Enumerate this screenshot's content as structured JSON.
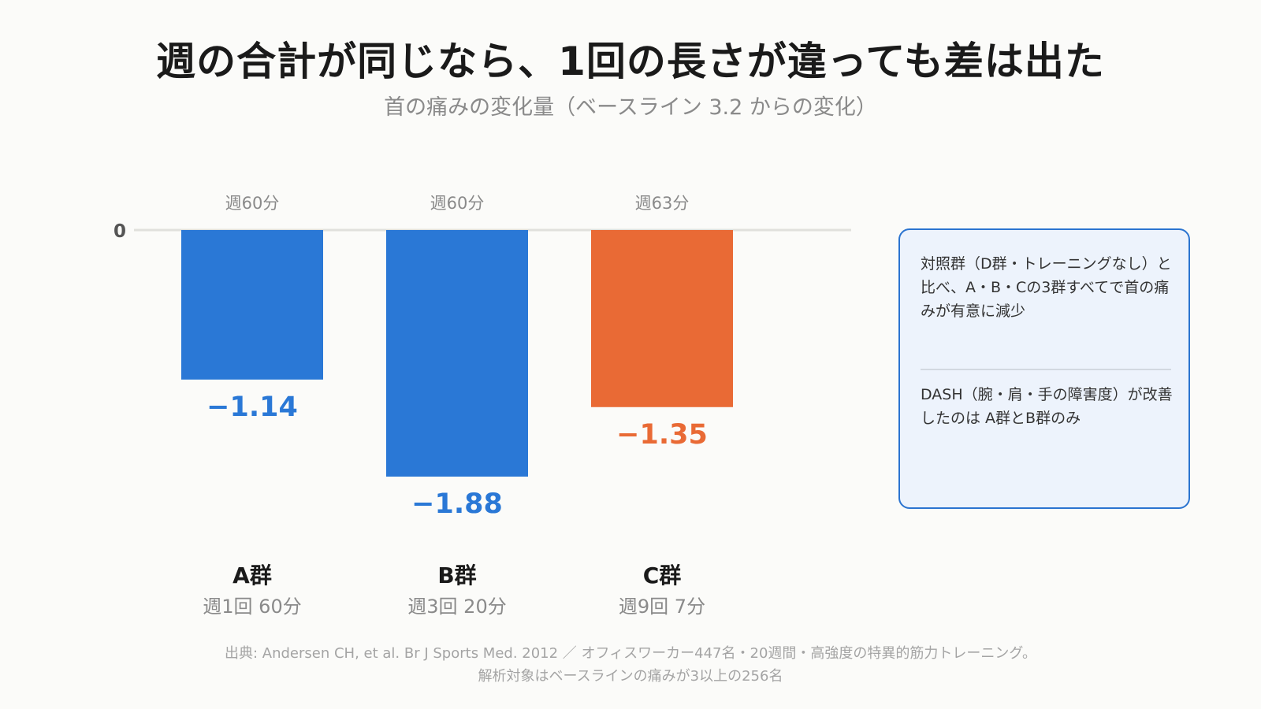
{
  "title": "週の合計が同じなら、1回の長さが違っても差は出た",
  "subtitle": "首の痛みの変化量（ベースライン 3.2 からの変化）",
  "chart_data": {
    "type": "bar",
    "categories": [
      "A群",
      "B群",
      "C群"
    ],
    "category_sublabels": [
      "週1回 60分",
      "週3回 20分",
      "週9回 7分"
    ],
    "top_labels": [
      "週60分",
      "週60分",
      "週63分"
    ],
    "values": [
      -1.14,
      -1.88,
      -1.35
    ],
    "value_labels": [
      "−1.14",
      "−1.88",
      "−1.35"
    ],
    "bar_colors": [
      "#2a78d6",
      "#2a78d6",
      "#e96a35"
    ],
    "zero_label": "0",
    "ylim": [
      -2.0,
      0
    ],
    "baseline": 3.2,
    "title": "週の合計が同じなら、1回の長さが違っても差は出た",
    "subtitle": "首の痛みの変化量（ベースライン 3.2 からの変化）"
  },
  "notes": [
    "対照群（D群・トレーニングなし）と比べ、A・B・Cの3群すべてで首の痛みが有意に減少",
    "DASH（腕・肩・手の障害度）が改善したのは A群とB群のみ"
  ],
  "footer": {
    "line1": "出典: Andersen CH, et al. Br J Sports Med. 2012 ／ オフィスワーカー447名・20週間・高強度の特異的筋力トレーニング。",
    "line2": "解析対象はベースラインの痛みが3以上の256名"
  },
  "colors": {
    "primary": "#2a78d6",
    "accent": "#e96a35",
    "axis": "#e0e0dc",
    "note_border": "#2b74d0",
    "note_bg": "#edf3fc"
  }
}
